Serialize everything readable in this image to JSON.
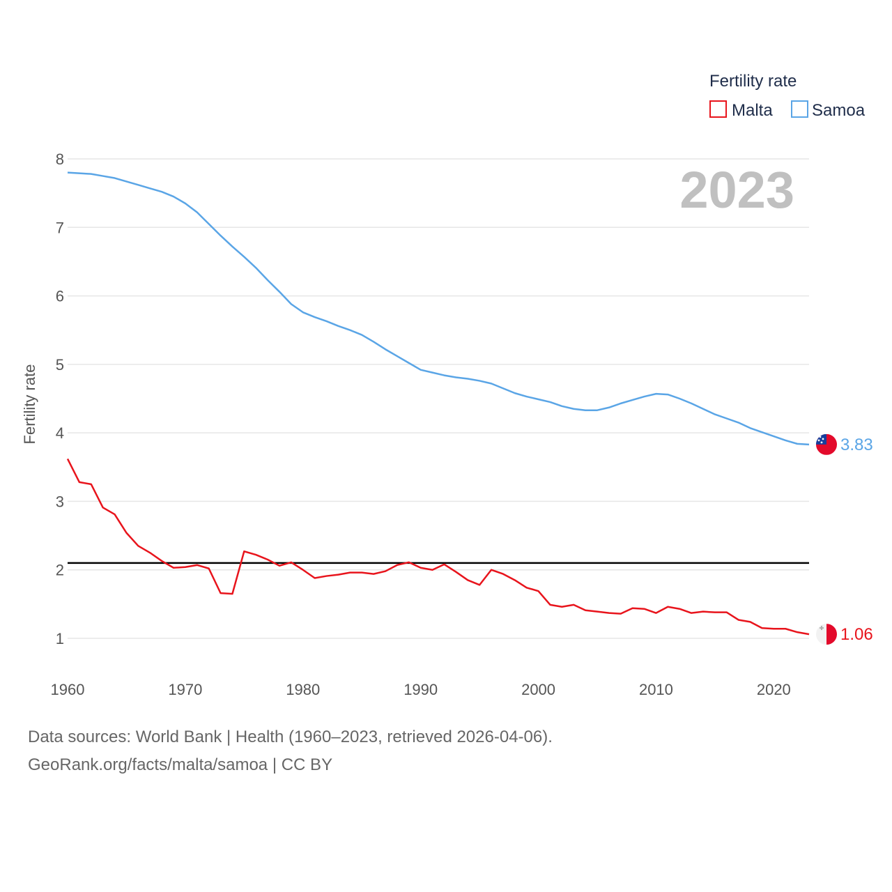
{
  "chart_data": {
    "type": "line",
    "title": "",
    "year_label": "2023",
    "xlabel": "",
    "ylabel": "Fertility rate",
    "xlim": [
      1960,
      2023
    ],
    "ylim": [
      0.5,
      8.3
    ],
    "x_ticks": [
      1960,
      1970,
      1980,
      1990,
      2000,
      2010,
      2020
    ],
    "y_ticks": [
      1,
      2,
      3,
      4,
      5,
      6,
      7,
      8
    ],
    "grid": true,
    "reference_line": {
      "value": 2.1,
      "color": "#000000"
    },
    "legend": {
      "title": "Fertility rate",
      "position": "top-right"
    },
    "x": [
      1960,
      1961,
      1962,
      1963,
      1964,
      1965,
      1966,
      1967,
      1968,
      1969,
      1970,
      1971,
      1972,
      1973,
      1974,
      1975,
      1976,
      1977,
      1978,
      1979,
      1980,
      1981,
      1982,
      1983,
      1984,
      1985,
      1986,
      1987,
      1988,
      1989,
      1990,
      1991,
      1992,
      1993,
      1994,
      1995,
      1996,
      1997,
      1998,
      1999,
      2000,
      2001,
      2002,
      2003,
      2004,
      2005,
      2006,
      2007,
      2008,
      2009,
      2010,
      2011,
      2012,
      2013,
      2014,
      2015,
      2016,
      2017,
      2018,
      2019,
      2020,
      2021,
      2022,
      2023
    ],
    "series": [
      {
        "name": "Malta",
        "color": "#e8141c",
        "end_label": "1.06",
        "values": [
          3.62,
          3.28,
          3.25,
          2.91,
          2.81,
          2.54,
          2.35,
          2.25,
          2.13,
          2.03,
          2.04,
          2.07,
          2.02,
          1.66,
          1.65,
          2.27,
          2.22,
          2.15,
          2.06,
          2.11,
          2.0,
          1.88,
          1.91,
          1.93,
          1.96,
          1.96,
          1.94,
          1.98,
          2.07,
          2.11,
          2.03,
          2.0,
          2.08,
          1.97,
          1.85,
          1.78,
          2.0,
          1.94,
          1.85,
          1.74,
          1.69,
          1.49,
          1.46,
          1.49,
          1.41,
          1.39,
          1.37,
          1.36,
          1.44,
          1.43,
          1.37,
          1.46,
          1.43,
          1.37,
          1.39,
          1.38,
          1.38,
          1.27,
          1.24,
          1.15,
          1.14,
          1.14,
          1.09,
          1.06
        ]
      },
      {
        "name": "Samoa",
        "color": "#5aa5e6",
        "end_label": "3.83",
        "values": [
          7.8,
          7.79,
          7.78,
          7.75,
          7.72,
          7.67,
          7.62,
          7.57,
          7.52,
          7.45,
          7.35,
          7.22,
          7.05,
          6.88,
          6.72,
          6.57,
          6.41,
          6.23,
          6.06,
          5.88,
          5.76,
          5.69,
          5.63,
          5.56,
          5.5,
          5.43,
          5.33,
          5.22,
          5.12,
          5.02,
          4.92,
          4.88,
          4.84,
          4.81,
          4.79,
          4.76,
          4.72,
          4.65,
          4.58,
          4.53,
          4.49,
          4.45,
          4.39,
          4.35,
          4.33,
          4.33,
          4.37,
          4.43,
          4.48,
          4.53,
          4.57,
          4.56,
          4.5,
          4.43,
          4.35,
          4.27,
          4.21,
          4.15,
          4.07,
          4.01,
          3.95,
          3.89,
          3.84,
          3.83
        ]
      }
    ]
  },
  "footer": {
    "sources": "Data sources: World Bank | Health (1960–2023, retrieved 2026-04-06).",
    "credit": "GeoRank.org/facts/malta/samoa | CC BY"
  },
  "flags": {
    "samoa": {
      "field": "#e30a2b",
      "canton": "#163e9c",
      "stars": "#ffffff"
    },
    "malta": {
      "white": "#f2f2f2",
      "red": "#e30a2b",
      "cross": "#b0b0b0"
    }
  }
}
